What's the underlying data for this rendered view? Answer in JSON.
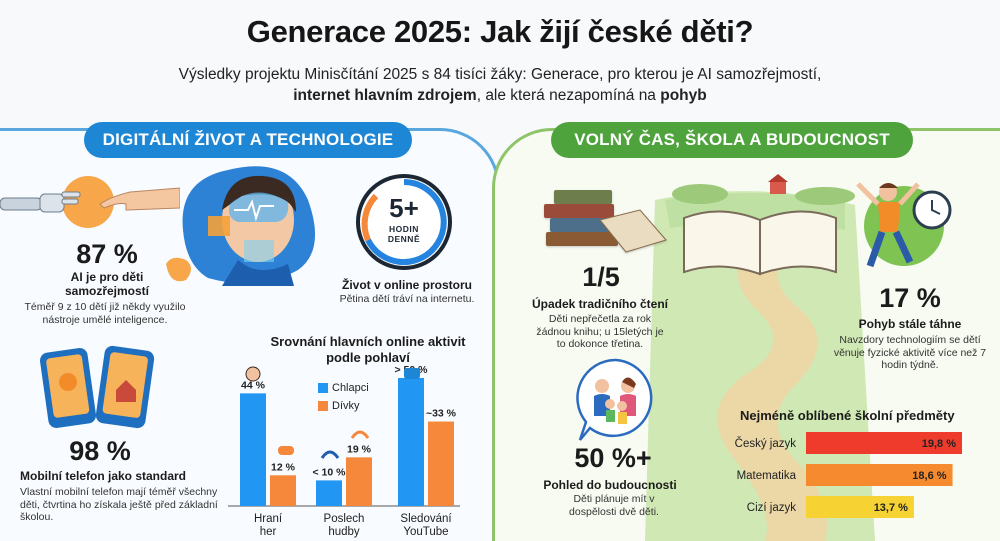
{
  "header": {
    "title": "Generace 2025: Jak žijí české děti?",
    "subtitle_line1": "Výsledky projektu Minisčítání 2025 s 84 tisíci žáky: Generace, pro kterou je AI samozřejmostí,",
    "subtitle_bold1": "internet hlavním zdrojem",
    "subtitle_mid": ", ale která nezapomíná na ",
    "subtitle_bold2": "pohyb"
  },
  "sections": {
    "left_title": "DIGITÁLNÍ ŽIVOT A TECHNOLOGIE",
    "right_title": "VOLNÝ ČAS, ŠKOLA A BUDOUCNOST"
  },
  "stats": {
    "ai": {
      "value": "87 %",
      "title": "AI je pro děti samozřejmostí",
      "desc": "Téměř 9 z 10 dětí již někdy využilo nástroje umělé inteligence."
    },
    "online": {
      "clock_value": "5+",
      "clock_label_1": "HODIN",
      "clock_label_2": "DENNĚ",
      "title": "Život v online prostoru",
      "desc": "Pětina dětí tráví na internetu."
    },
    "phone": {
      "value": "98 %",
      "title": "Mobilní telefon jako standard",
      "desc": "Vlastní mobilní telefon mají téměř všechny děti, čtvrtina ho získala ještě před základní školou."
    },
    "reading": {
      "value": "1/5",
      "title": "Úpadek tradičního čtení",
      "desc": "Děti nepřečetla za rok žádnou knihu; u 15letých je to dokonce třetina."
    },
    "movement": {
      "value": "17 %",
      "title": "Pohyb stále táhne",
      "desc": "Navzdory technologiím se dětí věnuje fyzické aktivitě více než 7 hodin týdně."
    },
    "future": {
      "value": "50 %+",
      "title": "Pohled do budoucnosti",
      "desc": "Děti plánuje mít v dospělosti dvě děti."
    }
  },
  "colors": {
    "left_accent": "#1d87d6",
    "right_accent": "#4ea33c",
    "boys": "#2196f3",
    "girls": "#f5883a",
    "subject_1": "#ef3b2c",
    "subject_2": "#f58b2e",
    "subject_3": "#f7d233"
  },
  "chart_data": [
    {
      "type": "bar",
      "title": "Srovnání hlavních online aktivit podle pohlaví",
      "categories": [
        "Hraní her",
        "Poslech hudby",
        "Sledování YouTube"
      ],
      "series": [
        {
          "name": "Chlapci",
          "values": [
            44,
            10,
            50
          ],
          "labels": [
            "44 %",
            "< 10 %",
            "> 50 %"
          ]
        },
        {
          "name": "Dívky",
          "values": [
            12,
            19,
            33
          ],
          "labels": [
            "12 %",
            "19 %",
            "~33 %"
          ]
        }
      ],
      "icons": [
        "boy-icon",
        "gamepad-icon",
        "headphones-icon",
        "youtube-icon"
      ]
    },
    {
      "type": "bar",
      "orientation": "horizontal",
      "title": "Nejméně oblíbené školní předměty",
      "categories": [
        "Český jazyk",
        "Matematika",
        "Cizí jazyk"
      ],
      "values": [
        19.8,
        18.6,
        13.7
      ],
      "labels": [
        "19,8 %",
        "18,6 %",
        "13,7 %"
      ]
    }
  ]
}
